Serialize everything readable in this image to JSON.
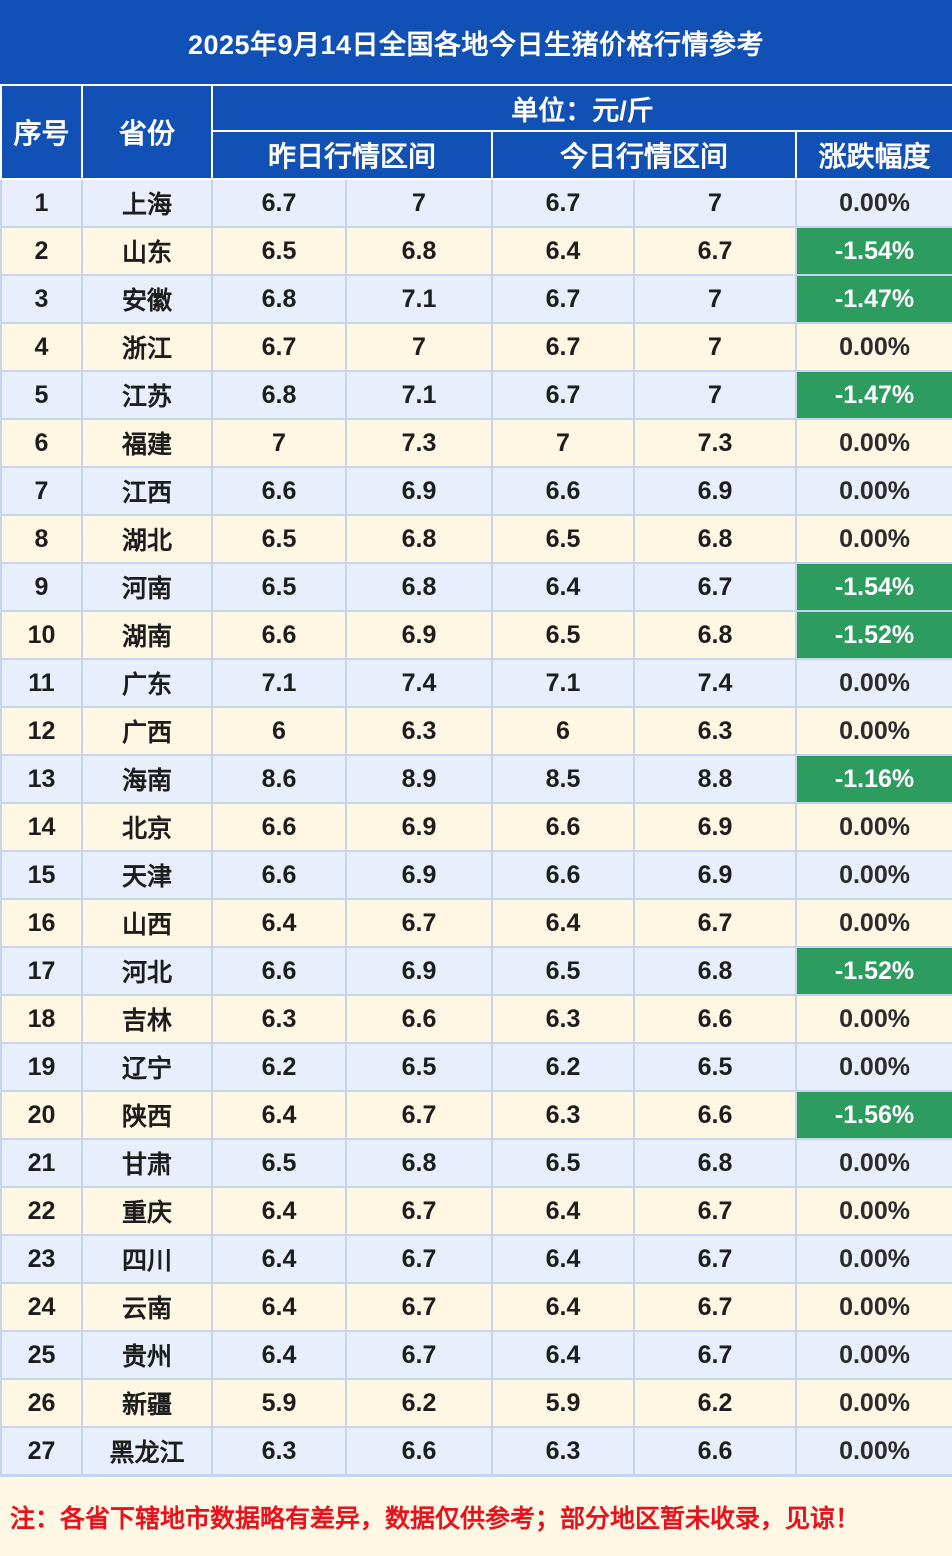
{
  "title": "2025年9月14日全国各地今日生猪价格行情参考",
  "header": {
    "seq": "序号",
    "province": "省份",
    "unit": "单位：元/斤",
    "yesterday": "昨日行情区间",
    "today": "今日行情区间",
    "change": "涨跌幅度"
  },
  "rows": [
    {
      "seq": "1",
      "province": "上海",
      "y_low": "6.7",
      "y_high": "7",
      "t_low": "6.7",
      "t_high": "7",
      "change": "0.00%",
      "dir": "flat"
    },
    {
      "seq": "2",
      "province": "山东",
      "y_low": "6.5",
      "y_high": "6.8",
      "t_low": "6.4",
      "t_high": "6.7",
      "change": "-1.54%",
      "dir": "down"
    },
    {
      "seq": "3",
      "province": "安徽",
      "y_low": "6.8",
      "y_high": "7.1",
      "t_low": "6.7",
      "t_high": "7",
      "change": "-1.47%",
      "dir": "down"
    },
    {
      "seq": "4",
      "province": "浙江",
      "y_low": "6.7",
      "y_high": "7",
      "t_low": "6.7",
      "t_high": "7",
      "change": "0.00%",
      "dir": "flat"
    },
    {
      "seq": "5",
      "province": "江苏",
      "y_low": "6.8",
      "y_high": "7.1",
      "t_low": "6.7",
      "t_high": "7",
      "change": "-1.47%",
      "dir": "down"
    },
    {
      "seq": "6",
      "province": "福建",
      "y_low": "7",
      "y_high": "7.3",
      "t_low": "7",
      "t_high": "7.3",
      "change": "0.00%",
      "dir": "flat"
    },
    {
      "seq": "7",
      "province": "江西",
      "y_low": "6.6",
      "y_high": "6.9",
      "t_low": "6.6",
      "t_high": "6.9",
      "change": "0.00%",
      "dir": "flat"
    },
    {
      "seq": "8",
      "province": "湖北",
      "y_low": "6.5",
      "y_high": "6.8",
      "t_low": "6.5",
      "t_high": "6.8",
      "change": "0.00%",
      "dir": "flat"
    },
    {
      "seq": "9",
      "province": "河南",
      "y_low": "6.5",
      "y_high": "6.8",
      "t_low": "6.4",
      "t_high": "6.7",
      "change": "-1.54%",
      "dir": "down"
    },
    {
      "seq": "10",
      "province": "湖南",
      "y_low": "6.6",
      "y_high": "6.9",
      "t_low": "6.5",
      "t_high": "6.8",
      "change": "-1.52%",
      "dir": "down"
    },
    {
      "seq": "11",
      "province": "广东",
      "y_low": "7.1",
      "y_high": "7.4",
      "t_low": "7.1",
      "t_high": "7.4",
      "change": "0.00%",
      "dir": "flat"
    },
    {
      "seq": "12",
      "province": "广西",
      "y_low": "6",
      "y_high": "6.3",
      "t_low": "6",
      "t_high": "6.3",
      "change": "0.00%",
      "dir": "flat"
    },
    {
      "seq": "13",
      "province": "海南",
      "y_low": "8.6",
      "y_high": "8.9",
      "t_low": "8.5",
      "t_high": "8.8",
      "change": "-1.16%",
      "dir": "down"
    },
    {
      "seq": "14",
      "province": "北京",
      "y_low": "6.6",
      "y_high": "6.9",
      "t_low": "6.6",
      "t_high": "6.9",
      "change": "0.00%",
      "dir": "flat"
    },
    {
      "seq": "15",
      "province": "天津",
      "y_low": "6.6",
      "y_high": "6.9",
      "t_low": "6.6",
      "t_high": "6.9",
      "change": "0.00%",
      "dir": "flat"
    },
    {
      "seq": "16",
      "province": "山西",
      "y_low": "6.4",
      "y_high": "6.7",
      "t_low": "6.4",
      "t_high": "6.7",
      "change": "0.00%",
      "dir": "flat"
    },
    {
      "seq": "17",
      "province": "河北",
      "y_low": "6.6",
      "y_high": "6.9",
      "t_low": "6.5",
      "t_high": "6.8",
      "change": "-1.52%",
      "dir": "down"
    },
    {
      "seq": "18",
      "province": "吉林",
      "y_low": "6.3",
      "y_high": "6.6",
      "t_low": "6.3",
      "t_high": "6.6",
      "change": "0.00%",
      "dir": "flat"
    },
    {
      "seq": "19",
      "province": "辽宁",
      "y_low": "6.2",
      "y_high": "6.5",
      "t_low": "6.2",
      "t_high": "6.5",
      "change": "0.00%",
      "dir": "flat"
    },
    {
      "seq": "20",
      "province": "陕西",
      "y_low": "6.4",
      "y_high": "6.7",
      "t_low": "6.3",
      "t_high": "6.6",
      "change": "-1.56%",
      "dir": "down"
    },
    {
      "seq": "21",
      "province": "甘肃",
      "y_low": "6.5",
      "y_high": "6.8",
      "t_low": "6.5",
      "t_high": "6.8",
      "change": "0.00%",
      "dir": "flat"
    },
    {
      "seq": "22",
      "province": "重庆",
      "y_low": "6.4",
      "y_high": "6.7",
      "t_low": "6.4",
      "t_high": "6.7",
      "change": "0.00%",
      "dir": "flat"
    },
    {
      "seq": "23",
      "province": "四川",
      "y_low": "6.4",
      "y_high": "6.7",
      "t_low": "6.4",
      "t_high": "6.7",
      "change": "0.00%",
      "dir": "flat"
    },
    {
      "seq": "24",
      "province": "云南",
      "y_low": "6.4",
      "y_high": "6.7",
      "t_low": "6.4",
      "t_high": "6.7",
      "change": "0.00%",
      "dir": "flat"
    },
    {
      "seq": "25",
      "province": "贵州",
      "y_low": "6.4",
      "y_high": "6.7",
      "t_low": "6.4",
      "t_high": "6.7",
      "change": "0.00%",
      "dir": "flat"
    },
    {
      "seq": "26",
      "province": "新疆",
      "y_low": "5.9",
      "y_high": "6.2",
      "t_low": "5.9",
      "t_high": "6.2",
      "change": "0.00%",
      "dir": "flat"
    },
    {
      "seq": "27",
      "province": "黑龙江",
      "y_low": "6.3",
      "y_high": "6.6",
      "t_low": "6.3",
      "t_high": "6.6",
      "change": "0.00%",
      "dir": "flat"
    }
  ],
  "colors": {
    "header_bg": "#1150b5",
    "down_bg": "#2d9c5f",
    "row_blue": "#e8eefb",
    "row_cream": "#fdf7e3",
    "note_text": "#e8121d"
  },
  "footnote": "注：各省下辖地市数据略有差异，数据仅供参考；部分地区暂未收录，见谅！"
}
